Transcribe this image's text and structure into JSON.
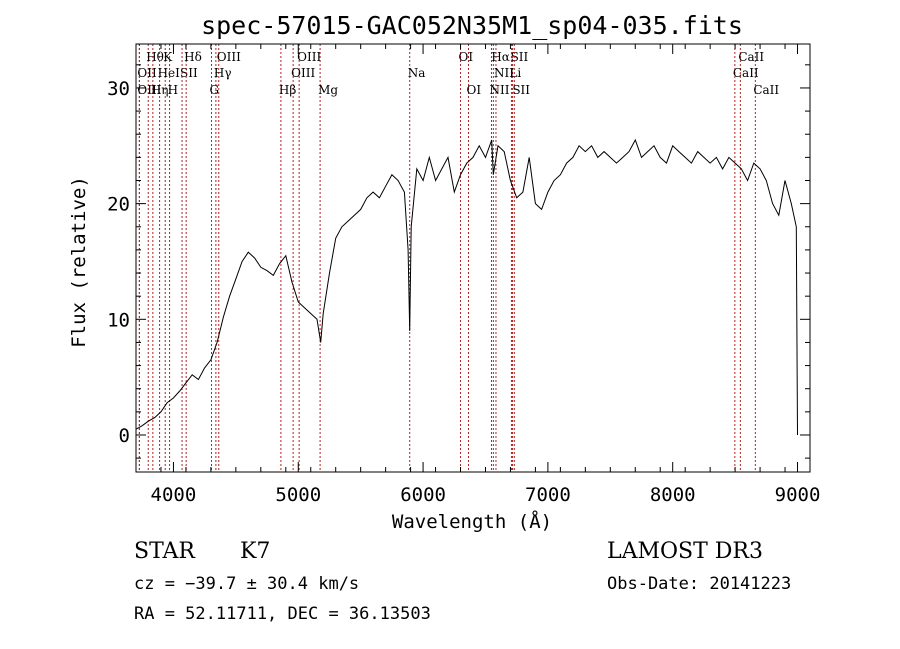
{
  "chart_data": {
    "type": "line",
    "title": "spec-57015-GAC052N35M1_sp04-035.fits",
    "xlabel": "Wavelength (Å)",
    "ylabel": "Flux (relative)",
    "xlim": [
      3700,
      9100
    ],
    "ylim": [
      -3.2,
      33.8
    ],
    "xticks": [
      4000,
      5000,
      6000,
      7000,
      8000,
      9000
    ],
    "yticks": [
      0,
      10,
      20,
      30
    ],
    "series": [
      {
        "name": "flux",
        "x": [
          3700,
          3750,
          3800,
          3850,
          3900,
          3950,
          4000,
          4050,
          4100,
          4150,
          4200,
          4250,
          4300,
          4350,
          4400,
          4450,
          4500,
          4550,
          4600,
          4650,
          4700,
          4750,
          4800,
          4850,
          4900,
          4950,
          5000,
          5050,
          5100,
          5150,
          5180,
          5200,
          5250,
          5300,
          5350,
          5400,
          5450,
          5500,
          5550,
          5600,
          5650,
          5700,
          5750,
          5800,
          5850,
          5880,
          5893,
          5905,
          5950,
          6000,
          6050,
          6100,
          6150,
          6200,
          6250,
          6300,
          6350,
          6400,
          6450,
          6500,
          6550,
          6563,
          6600,
          6650,
          6700,
          6750,
          6800,
          6850,
          6900,
          6950,
          7000,
          7050,
          7100,
          7150,
          7200,
          7250,
          7300,
          7350,
          7400,
          7450,
          7500,
          7550,
          7600,
          7650,
          7700,
          7750,
          7800,
          7850,
          7900,
          7950,
          8000,
          8050,
          8100,
          8150,
          8200,
          8250,
          8300,
          8350,
          8400,
          8450,
          8500,
          8550,
          8600,
          8650,
          8700,
          8750,
          8800,
          8850,
          8900,
          8950,
          8990,
          9000
        ],
        "y": [
          0.5,
          0.8,
          1.2,
          1.5,
          2.0,
          2.8,
          3.2,
          3.8,
          4.5,
          5.2,
          4.8,
          5.8,
          6.5,
          8.0,
          10.2,
          12.0,
          13.5,
          15.0,
          15.8,
          15.3,
          14.5,
          14.2,
          13.8,
          14.8,
          15.5,
          13.2,
          11.5,
          11.0,
          10.5,
          10.0,
          8.0,
          10.5,
          14.0,
          17.0,
          18.0,
          18.5,
          19.0,
          19.5,
          20.5,
          21.0,
          20.5,
          21.5,
          22.5,
          22.0,
          21.0,
          16.0,
          9.0,
          18.0,
          23.0,
          22.0,
          24.0,
          22.0,
          23.0,
          24.0,
          21.0,
          22.5,
          23.5,
          24.0,
          25.0,
          24.0,
          25.5,
          22.5,
          25.0,
          24.5,
          22.0,
          20.5,
          21.0,
          24.0,
          20.0,
          19.5,
          21.0,
          22.0,
          22.5,
          23.5,
          24.0,
          25.0,
          24.5,
          25.0,
          24.0,
          24.5,
          24.0,
          23.5,
          24.0,
          24.5,
          25.5,
          24.0,
          24.5,
          25.0,
          24.0,
          23.5,
          25.0,
          24.5,
          24.0,
          23.5,
          24.5,
          24.0,
          23.5,
          24.0,
          23.0,
          24.0,
          23.5,
          23.0,
          22.0,
          23.5,
          23.0,
          22.0,
          20.0,
          19.0,
          22.0,
          20.0,
          18.0,
          0.0
        ]
      }
    ],
    "line_markers": [
      {
        "label": "Hθ",
        "x": 3798,
        "row": 1
      },
      {
        "label": "OII",
        "x": 3727,
        "row": 2
      },
      {
        "label": "OIII",
        "x": 3727,
        "row": 3
      },
      {
        "label": "K",
        "x": 3934,
        "row": 1
      },
      {
        "label": "HeI",
        "x": 3889,
        "row": 2
      },
      {
        "label": "Hη",
        "x": 3835,
        "row": 3
      },
      {
        "label": "SII",
        "x": 4069,
        "row": 2
      },
      {
        "label": "H",
        "x": 3969,
        "row": 3
      },
      {
        "label": "Hδ",
        "x": 4102,
        "row": 1
      },
      {
        "label": "OIII",
        "x": 4363,
        "row": 1
      },
      {
        "label": "Hγ",
        "x": 4340,
        "row": 2
      },
      {
        "label": "G",
        "x": 4305,
        "row": 3
      },
      {
        "label": "OIII",
        "x": 5007,
        "row": 1
      },
      {
        "label": "OIII",
        "x": 4959,
        "row": 2
      },
      {
        "label": "Hβ",
        "x": 4861,
        "row": 3
      },
      {
        "label": "Mg",
        "x": 5175,
        "row": 3
      },
      {
        "label": "Na",
        "x": 5893,
        "row": 2
      },
      {
        "label": "OI",
        "x": 6300,
        "row": 1
      },
      {
        "label": "OI",
        "x": 6364,
        "row": 3
      },
      {
        "label": "Hα",
        "x": 6563,
        "row": 1
      },
      {
        "label": "SII",
        "x": 6717,
        "row": 1
      },
      {
        "label": "NII",
        "x": 6584,
        "row": 2
      },
      {
        "label": "Li",
        "x": 6708,
        "row": 2
      },
      {
        "label": "NII",
        "x": 6548,
        "row": 3
      },
      {
        "label": "SII",
        "x": 6731,
        "row": 3
      },
      {
        "label": "CaII",
        "x": 8542,
        "row": 1
      },
      {
        "label": "CaII",
        "x": 8498,
        "row": 2
      },
      {
        "label": "CaII",
        "x": 8662,
        "row": 3
      }
    ]
  },
  "info": {
    "class": "STAR",
    "subclass": "K7",
    "survey": "LAMOST DR3",
    "cz": "cz = −39.7 ± 30.4 km/s",
    "obsdate": "Obs-Date: 20141223",
    "radec": "RA =  52.11711, DEC =  36.13503"
  }
}
